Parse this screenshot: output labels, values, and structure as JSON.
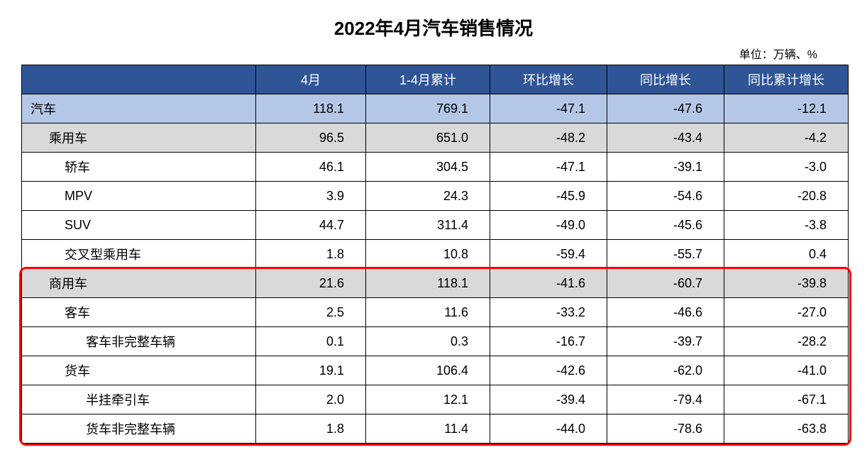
{
  "title": "2022年4月汽车销售情况",
  "unit_label": "单位：万辆、%",
  "columns": [
    "",
    "4月",
    "1-4月累计",
    "环比增长",
    "同比增长",
    "同比累计增长"
  ],
  "colors": {
    "header_bg": "#2f5597",
    "header_text": "#ffffff",
    "row_blue": "#b4c7e7",
    "row_grey": "#d9d9d9",
    "row_white": "#ffffff",
    "border": "#000000",
    "highlight_border": "#ff0000"
  },
  "font": {
    "title_size": 26,
    "cell_size": 18,
    "unit_size": 16
  },
  "highlight": {
    "start_row_index": 6,
    "end_row_index": 11
  },
  "rows": [
    {
      "name": "汽车",
      "indent": 0,
      "style": "blue",
      "v": [
        "118.1",
        "769.1",
        "-47.1",
        "-47.6",
        "-12.1"
      ]
    },
    {
      "name": "乘用车",
      "indent": 1,
      "style": "grey",
      "v": [
        "96.5",
        "651.0",
        "-48.2",
        "-43.4",
        "-4.2"
      ]
    },
    {
      "name": "轿车",
      "indent": 2,
      "style": "white",
      "v": [
        "46.1",
        "304.5",
        "-47.1",
        "-39.1",
        "-3.0"
      ]
    },
    {
      "name": "MPV",
      "indent": 2,
      "style": "white",
      "v": [
        "3.9",
        "24.3",
        "-45.9",
        "-54.6",
        "-20.8"
      ]
    },
    {
      "name": "SUV",
      "indent": 2,
      "style": "white",
      "v": [
        "44.7",
        "311.4",
        "-49.0",
        "-45.6",
        "-3.8"
      ]
    },
    {
      "name": "交叉型乘用车",
      "indent": 2,
      "style": "white",
      "v": [
        "1.8",
        "10.8",
        "-59.4",
        "-55.7",
        "0.4"
      ]
    },
    {
      "name": "商用车",
      "indent": 1,
      "style": "grey",
      "v": [
        "21.6",
        "118.1",
        "-41.6",
        "-60.7",
        "-39.8"
      ]
    },
    {
      "name": "客车",
      "indent": 2,
      "style": "white",
      "v": [
        "2.5",
        "11.6",
        "-33.2",
        "-46.6",
        "-27.0"
      ]
    },
    {
      "name": "客车非完整车辆",
      "indent": 3,
      "style": "white",
      "v": [
        "0.1",
        "0.3",
        "-16.7",
        "-39.7",
        "-28.2"
      ]
    },
    {
      "name": "货车",
      "indent": 2,
      "style": "white",
      "v": [
        "19.1",
        "106.4",
        "-42.6",
        "-62.0",
        "-41.0"
      ]
    },
    {
      "name": "半挂牵引车",
      "indent": 3,
      "style": "white",
      "v": [
        "2.0",
        "12.1",
        "-39.4",
        "-79.4",
        "-67.1"
      ]
    },
    {
      "name": "货车非完整车辆",
      "indent": 3,
      "style": "white",
      "v": [
        "1.8",
        "11.4",
        "-44.0",
        "-78.6",
        "-63.8"
      ]
    }
  ]
}
